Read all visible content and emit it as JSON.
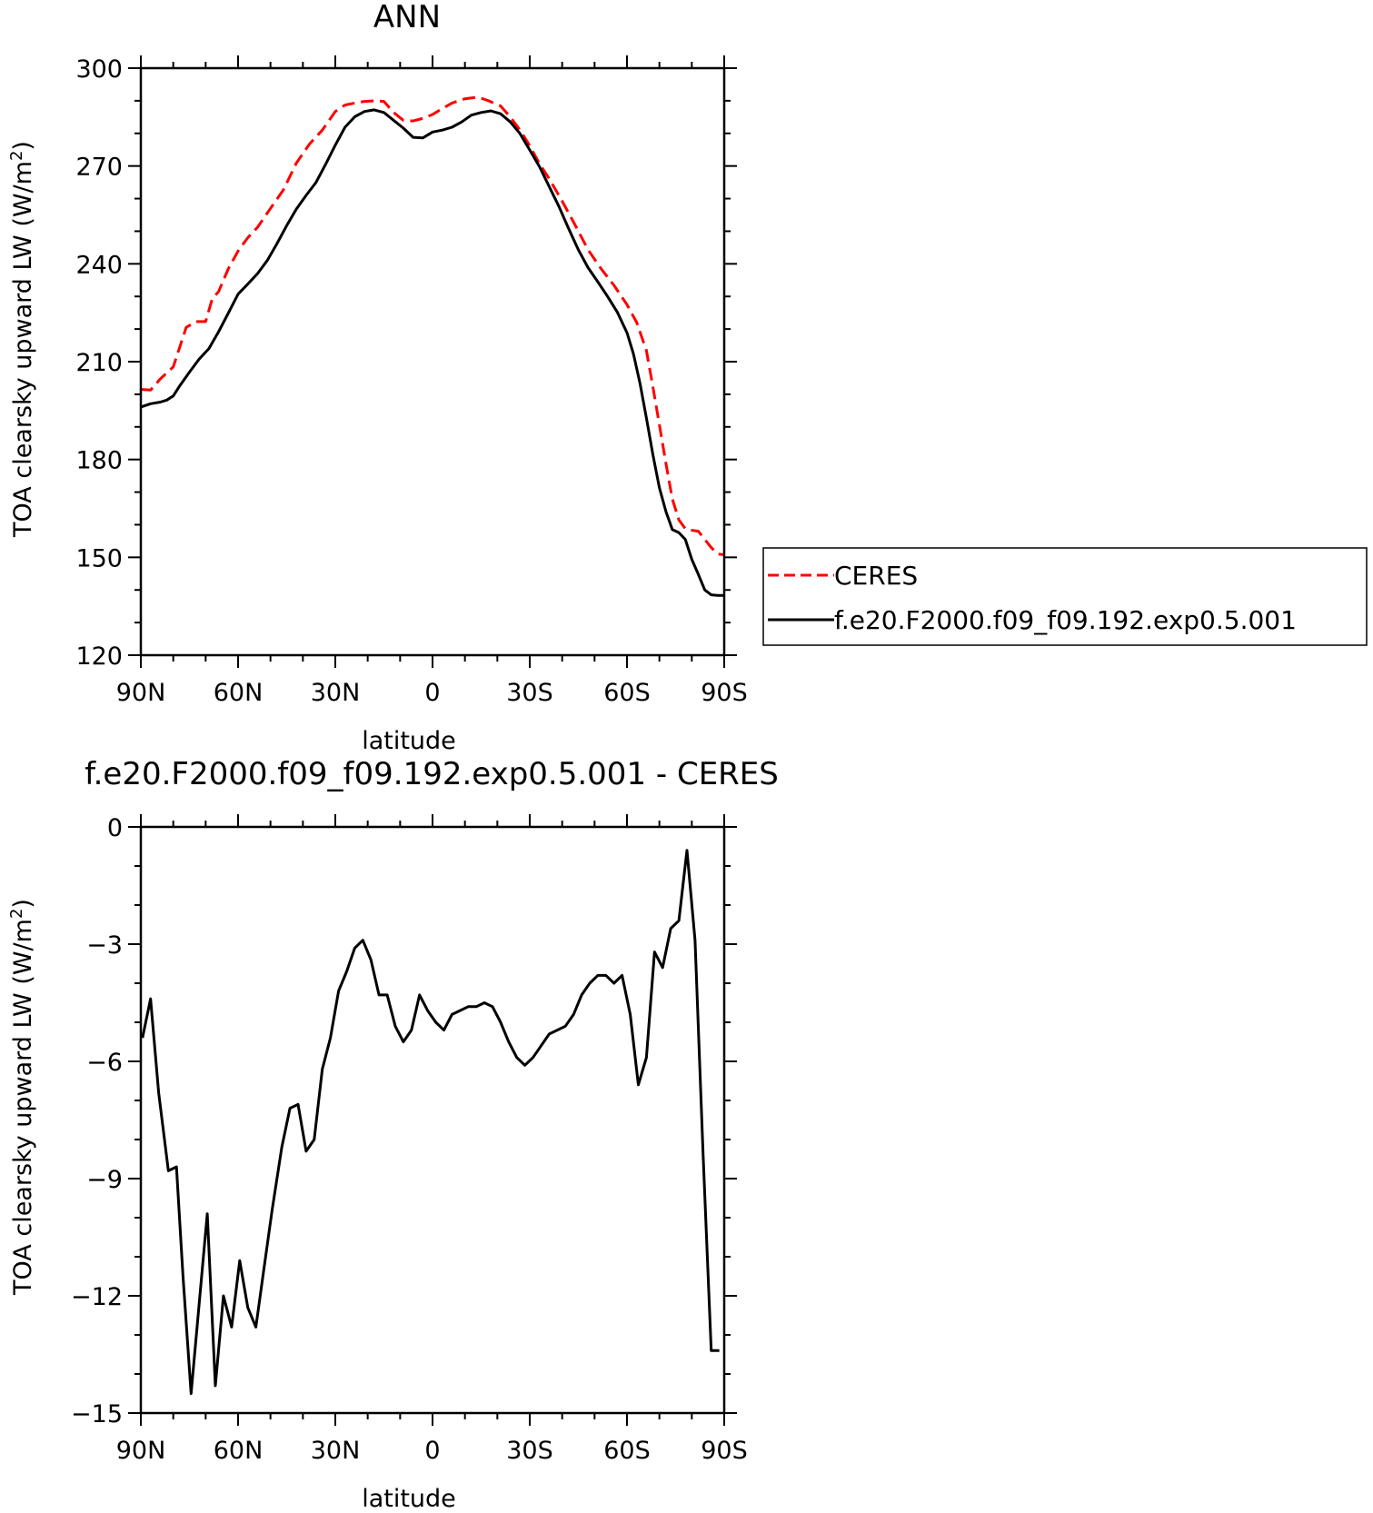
{
  "chart_data": [
    {
      "type": "line",
      "title": "ANN",
      "xlabel": "latitude",
      "ylabel": "TOA clearsky upward LW (W/m",
      "ylabel_sup": "2",
      "ylabel_close": ")",
      "xlim": [
        -90,
        90
      ],
      "ylim": [
        120,
        300
      ],
      "x_ticks": [
        -90,
        -60,
        -30,
        0,
        30,
        60,
        90
      ],
      "x_tick_labels": [
        "90N",
        "60N",
        "30N",
        "0",
        "30S",
        "60S",
        "90S"
      ],
      "y_ticks": [
        120,
        150,
        180,
        210,
        240,
        270,
        300
      ],
      "y_tick_labels": [
        "120",
        "150",
        "180",
        "210",
        "240",
        "270",
        "300"
      ],
      "legend_position": "right",
      "series": [
        {
          "name": "CERES",
          "color": "#ff0000",
          "style": "dashed",
          "x": [
            -90,
            -87,
            -84,
            -80,
            -76,
            -73,
            -70,
            -68,
            -66,
            -63,
            -60,
            -57,
            -54,
            -50,
            -46,
            -42,
            -38,
            -34,
            -30,
            -27,
            -24,
            -21,
            -18,
            -15,
            -12,
            -9,
            -6,
            -3,
            0,
            3,
            6,
            10,
            14,
            17,
            21,
            24,
            27,
            30,
            33,
            36,
            40,
            44,
            48,
            52,
            56,
            60,
            63,
            66,
            68,
            70,
            72,
            74,
            76,
            78,
            80,
            82,
            84,
            86,
            88,
            90
          ],
          "y": [
            201.5,
            201.3,
            204.7,
            208.4,
            220.5,
            222.3,
            222.3,
            229.2,
            231.5,
            238.5,
            243.9,
            248.0,
            251.2,
            257.0,
            262.7,
            270.9,
            276.7,
            281.0,
            286.7,
            288.7,
            289.3,
            289.8,
            290.0,
            289.8,
            286.4,
            284.0,
            283.8,
            284.6,
            285.8,
            287.6,
            289.3,
            290.6,
            291.1,
            290.1,
            288.4,
            285.0,
            281.0,
            276.2,
            270.7,
            266.1,
            259.2,
            251.9,
            244.3,
            238.5,
            233.4,
            227.5,
            222.0,
            213.4,
            202.3,
            190.6,
            178.9,
            167.9,
            161.5,
            158.8,
            158.3,
            158.0,
            155.5,
            153.0,
            151.0,
            150.8
          ]
        },
        {
          "name": "f.e20.F2000.f09_f09.192.exp0.5.001",
          "color": "#000000",
          "style": "solid",
          "x": [
            -90,
            -87,
            -84,
            -82,
            -80,
            -78,
            -75,
            -72,
            -69,
            -66,
            -63,
            -60,
            -57,
            -54,
            -51,
            -48,
            -45,
            -42,
            -39,
            -36,
            -33,
            -30,
            -27,
            -24,
            -21,
            -18,
            -15,
            -12,
            -9,
            -6,
            -3,
            0,
            3,
            6,
            9,
            12,
            15,
            18,
            21,
            24,
            27,
            30,
            33,
            36,
            39,
            42,
            45,
            48,
            51,
            54,
            57,
            60,
            62,
            64,
            66,
            68,
            70,
            72,
            74,
            76,
            78,
            80,
            82,
            84,
            86,
            88,
            90
          ],
          "y": [
            196.1,
            197.1,
            197.6,
            198.2,
            199.5,
            202.6,
            206.8,
            210.8,
            214.0,
            219.2,
            224.9,
            230.7,
            233.8,
            237.0,
            241.0,
            246.2,
            251.7,
            256.8,
            261.0,
            264.9,
            270.5,
            276.4,
            281.9,
            285.1,
            286.7,
            287.2,
            286.4,
            284.0,
            281.6,
            278.8,
            278.6,
            280.4,
            281.0,
            281.9,
            283.5,
            285.6,
            286.4,
            286.9,
            286.0,
            283.5,
            279.9,
            274.9,
            269.8,
            263.7,
            257.6,
            250.8,
            244.3,
            238.8,
            234.5,
            230.0,
            225.2,
            218.9,
            212.4,
            203.4,
            192.7,
            181.5,
            171.3,
            164.1,
            158.5,
            157.6,
            155.5,
            149.4,
            144.8,
            140.0,
            138.5,
            138.3,
            138.3
          ]
        }
      ]
    },
    {
      "type": "line",
      "title": "f.e20.F2000.f09_f09.192.exp0.5.001 - CERES",
      "xlabel": "latitude",
      "ylabel": "TOA clearsky upward LW (W/m",
      "ylabel_sup": "2",
      "ylabel_close": ")",
      "xlim": [
        -90,
        90
      ],
      "ylim": [
        -15,
        0
      ],
      "x_ticks": [
        -90,
        -60,
        -30,
        0,
        30,
        60,
        90
      ],
      "x_tick_labels": [
        "90N",
        "60N",
        "30N",
        "0",
        "30S",
        "60S",
        "90S"
      ],
      "y_ticks": [
        -15,
        -12,
        -9,
        -6,
        -3,
        0
      ],
      "y_tick_labels": [
        "−15",
        "−12",
        "−9",
        "−6",
        "−3",
        "0"
      ],
      "series": [
        {
          "color": "#000000",
          "style": "solid",
          "x": [
            -89.5,
            -87.0,
            -84.5,
            -81.5,
            -79.0,
            -77.0,
            -74.5,
            -72.0,
            -69.5,
            -67.0,
            -64.5,
            -62.0,
            -59.5,
            -57.0,
            -54.5,
            -52.0,
            -49.5,
            -46.5,
            -44.0,
            -41.5,
            -39.0,
            -36.5,
            -34.0,
            -31.5,
            -29.0,
            -26.5,
            -24.0,
            -21.5,
            -19.0,
            -16.5,
            -14.0,
            -11.5,
            -9.0,
            -6.5,
            -4.0,
            -1.5,
            1.0,
            3.5,
            6.0,
            8.5,
            11.0,
            13.5,
            16.0,
            18.5,
            21.0,
            23.5,
            26.0,
            28.5,
            31.0,
            33.5,
            36.0,
            38.5,
            41.0,
            43.5,
            46.0,
            48.5,
            51.0,
            53.5,
            56.0,
            58.5,
            61.0,
            63.5,
            66.0,
            68.5,
            71.0,
            73.5,
            76.0,
            78.5,
            81.0,
            83.5,
            86.0,
            88.5
          ],
          "y": [
            -5.4,
            -4.4,
            -6.8,
            -8.8,
            -8.7,
            -11.5,
            -14.5,
            -12.2,
            -9.9,
            -14.3,
            -12.0,
            -12.8,
            -11.1,
            -12.3,
            -12.8,
            -11.3,
            -9.8,
            -8.2,
            -7.2,
            -7.1,
            -8.3,
            -8.0,
            -6.2,
            -5.4,
            -4.2,
            -3.7,
            -3.1,
            -2.9,
            -3.4,
            -4.3,
            -4.3,
            -5.1,
            -5.5,
            -5.2,
            -4.3,
            -4.7,
            -5.0,
            -5.2,
            -4.8,
            -4.7,
            -4.6,
            -4.6,
            -4.5,
            -4.6,
            -5.0,
            -5.5,
            -5.9,
            -6.1,
            -5.9,
            -5.6,
            -5.3,
            -5.2,
            -5.1,
            -4.8,
            -4.3,
            -4.0,
            -3.8,
            -3.8,
            -4.0,
            -3.8,
            -4.8,
            -6.6,
            -5.9,
            -3.2,
            -3.6,
            -2.6,
            -2.4,
            -0.6,
            -2.9,
            -8.4,
            -13.4,
            -13.4
          ]
        }
      ]
    }
  ]
}
